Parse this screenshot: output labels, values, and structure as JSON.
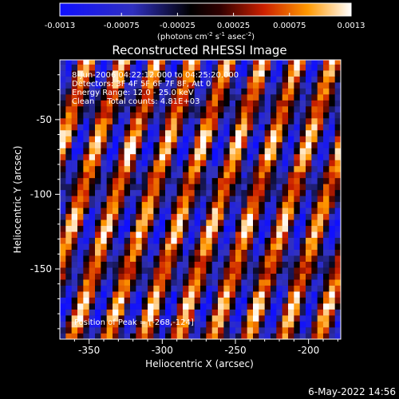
{
  "chart_data": {
    "type": "heatmap",
    "title": "Reconstructed RHESSI Image",
    "xlabel": "Heliocentric X (arcsec)",
    "ylabel": "Heliocentric Y (arcsec)",
    "xlim": [
      -370,
      -178
    ],
    "ylim": [
      -197,
      -10
    ],
    "x_ticks": [
      -350,
      -300,
      -250,
      -200
    ],
    "y_ticks": [
      -50,
      -100,
      -150
    ],
    "grid": false,
    "colorbar": {
      "position": "top",
      "min": -0.0013,
      "max": 0.0013,
      "tick_values": [
        -0.0013,
        -0.00075,
        -0.00025,
        0.00025,
        0.00075,
        0.0013
      ],
      "tick_labels": [
        "-0.0013",
        "-0.00075",
        "-0.00025",
        "0.00025",
        "0.00075",
        "0.0013"
      ],
      "units_text": "(photons cm",
      "units_exp1": "-2",
      "units_mid": " s",
      "units_exp2": "-1",
      "units_end": " asec",
      "units_exp3": "-2",
      "units_close": ")",
      "colors": [
        "#1010ff",
        "#000000",
        "#cc2000",
        "#ff9800",
        "#ffffff"
      ]
    },
    "annotations": {
      "time_range": "8-Jun-2006 04:22:12.000 to 04:25:20.000",
      "detectors": "Detectors: 3F 4F 5F 6F 7F 8F, Att 0",
      "energy_range": "Energy Range: 12.0 - 25.0 keV",
      "clean": "Clean     Total counts: 4.81E+03",
      "peak": "Position of Peak = [-268,-124]"
    },
    "peak_position": [
      -268,
      -124
    ],
    "pattern": {
      "description_values": "diagonal fringe pattern of alternating positive and negative flux",
      "fringe_slope": 3.2,
      "fringe_period_arcsec": 24
    }
  },
  "footer": {
    "timestamp": "6-May-2022 14:56"
  }
}
